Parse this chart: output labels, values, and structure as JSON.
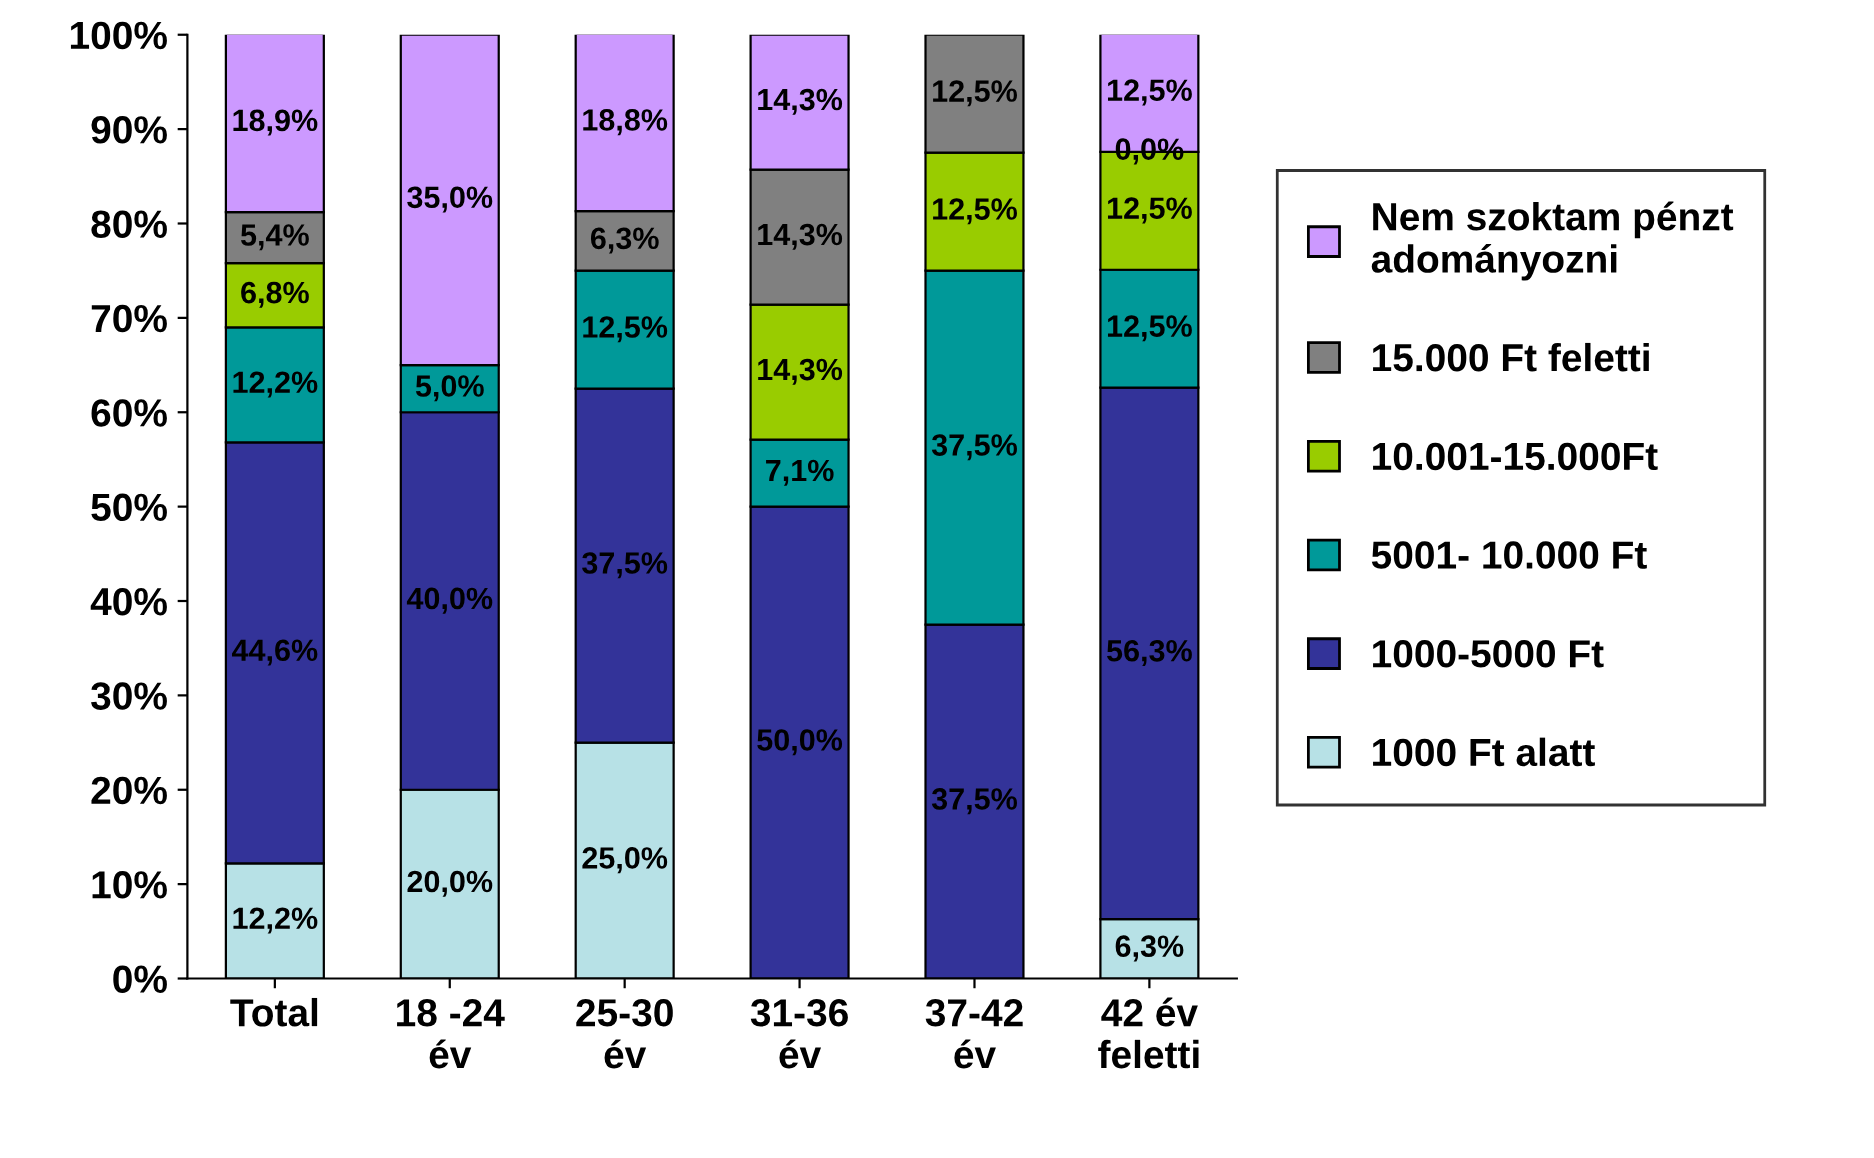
{
  "chart_data": {
    "type": "bar",
    "stacked": true,
    "categories": [
      "Total",
      "18 -24\név",
      "25-30\név",
      "31-36\név",
      "37-42\név",
      "42 év\nfeletti"
    ],
    "ylim": [
      0,
      100
    ],
    "yticks": [
      {
        "value": 0,
        "label": "0%"
      },
      {
        "value": 10,
        "label": "10%"
      },
      {
        "value": 20,
        "label": "20%"
      },
      {
        "value": 30,
        "label": "30%"
      },
      {
        "value": 40,
        "label": "40%"
      },
      {
        "value": 50,
        "label": "50%"
      },
      {
        "value": 60,
        "label": "60%"
      },
      {
        "value": 70,
        "label": "70%"
      },
      {
        "value": 80,
        "label": "80%"
      },
      {
        "value": 90,
        "label": "90%"
      },
      {
        "value": 100,
        "label": "100%"
      }
    ],
    "grid": false,
    "legend": "right",
    "series": [
      {
        "name": "1000 Ft alatt",
        "color": "#b7e1e6",
        "values": [
          12.2,
          20.0,
          25.0,
          0,
          0,
          6.3
        ],
        "value_labels": [
          "12,2%",
          "20,0%",
          "25,0%",
          null,
          null,
          "6,3%"
        ]
      },
      {
        "name": "1000-5000 Ft",
        "color": "#333399",
        "values": [
          44.6,
          40.0,
          37.5,
          50.0,
          37.5,
          56.3
        ],
        "value_labels": [
          "44,6%",
          "40,0%",
          "37,5%",
          "50,0%",
          "37,5%",
          "56,3%"
        ]
      },
      {
        "name": "5001- 10.000 Ft",
        "color": "#009999",
        "values": [
          12.2,
          5.0,
          12.5,
          7.1,
          37.5,
          12.5
        ],
        "value_labels": [
          "12,2%",
          "5,0%",
          "12,5%",
          "7,1%",
          "37,5%",
          "12,5%"
        ]
      },
      {
        "name": "10.001-15.000Ft",
        "color": "#99cc00",
        "values": [
          6.8,
          0,
          0,
          14.3,
          12.5,
          12.5
        ],
        "value_labels": [
          "6,8%",
          null,
          null,
          "14,3%",
          "12,5%",
          "12,5%"
        ]
      },
      {
        "name": "15.000 Ft feletti",
        "color": "#808080",
        "values": [
          5.4,
          0,
          6.3,
          14.3,
          12.5,
          0.0
        ],
        "value_labels": [
          "5,4%",
          null,
          "6,3%",
          "14,3%",
          "12,5%",
          "0,0%"
        ]
      },
      {
        "name": "Nem szoktam pénzt\nadományozni",
        "color": "#cc99ff",
        "values": [
          18.9,
          35.0,
          18.8,
          14.3,
          0,
          12.5
        ],
        "value_labels": [
          "18,9%",
          "35,0%",
          "18,8%",
          "14,3%",
          null,
          "12,5%"
        ]
      }
    ]
  }
}
